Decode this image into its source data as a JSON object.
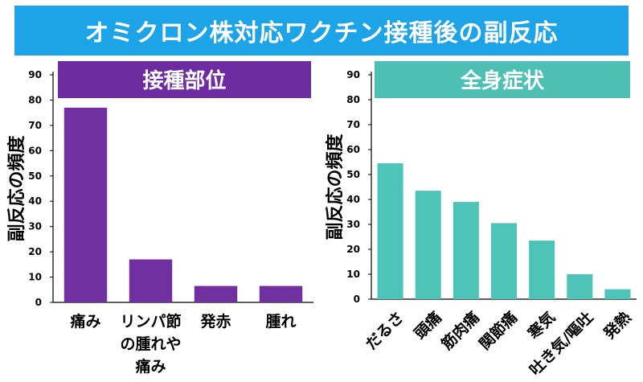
{
  "page": {
    "banner_title": "オミクロン株対応ワクチン接種後の副反応",
    "banner_color": "#1ca3e8"
  },
  "chart_data": [
    {
      "type": "bar",
      "title": "接種部位",
      "title_bg": "#6d2c9f",
      "bar_color": "#7030a0",
      "ylabel": "副反応の頻度",
      "xlabel": "",
      "ylim": [
        0,
        90
      ],
      "yticks": [
        0,
        10,
        20,
        30,
        40,
        50,
        60,
        70,
        80,
        90
      ],
      "categories": [
        "痛み",
        "リンパ節\nの腫れや\n痛み",
        "発赤",
        "腫れ"
      ],
      "values": [
        77,
        17,
        6.5,
        6.5
      ],
      "xtick_rotation": 0,
      "grid": false
    },
    {
      "type": "bar",
      "title": "全身症状",
      "title_bg": "#4dbfb3",
      "bar_color": "#4ec3b7",
      "ylabel": "副反応の頻度",
      "xlabel": "",
      "ylim": [
        0,
        90
      ],
      "yticks": [
        0,
        10,
        20,
        30,
        40,
        50,
        60,
        70,
        80,
        90
      ],
      "categories": [
        "だるさ",
        "頭痛",
        "筋肉痛",
        "関節痛",
        "寒気",
        "吐き気/嘔吐",
        "発熱"
      ],
      "values": [
        54.5,
        43.5,
        39,
        30.5,
        23.5,
        10,
        4
      ],
      "xtick_rotation": -45,
      "grid": false
    }
  ]
}
